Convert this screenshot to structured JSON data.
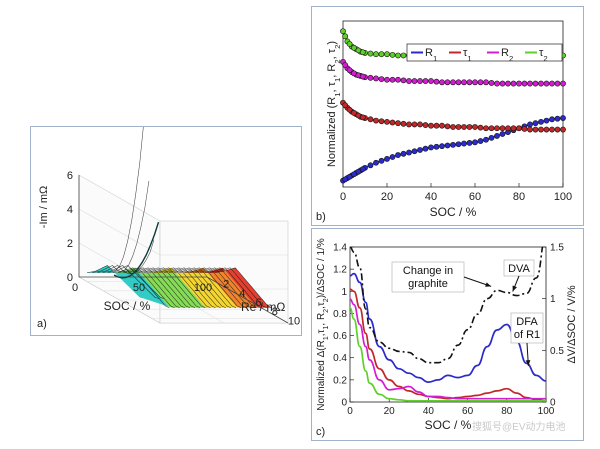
{
  "panel_labels": {
    "a": "a)",
    "b": "b)",
    "c": "c)"
  },
  "watermark": "搜狐号@EV动力电池",
  "chart_data": [
    {
      "type": "surface3d",
      "panel": "a",
      "axes": {
        "z": {
          "label": "-Im / mΩ",
          "ticks": [
            "0",
            "2",
            "4",
            "6"
          ],
          "range": [
            0,
            6
          ]
        },
        "x": {
          "label": "SOC / %",
          "ticks": [
            "0",
            "50",
            "100"
          ],
          "range": [
            0,
            100
          ]
        },
        "y": {
          "label": "Re / mΩ",
          "ticks": [
            "2",
            "4",
            "6",
            "8",
            "10"
          ],
          "range": [
            1,
            11
          ]
        }
      },
      "colormap": [
        "#1fc8c0",
        "#7cd84a",
        "#f4d21f",
        "#f07a1a",
        "#e0301e"
      ]
    },
    {
      "type": "scatter-line",
      "panel": "b",
      "xlabel": "SOC / %",
      "ylabel": "Normalized (R1, τ1, R2, τ2)",
      "ylabel_parts": [
        "Normalized (R",
        "1",
        ", τ",
        "1",
        ", R",
        "2",
        ", τ",
        "2",
        ")"
      ],
      "xlim": [
        0,
        100
      ],
      "ylim": [
        0,
        1.3
      ],
      "xticks": [
        "0",
        "20",
        "40",
        "60",
        "80",
        "100"
      ],
      "x": [
        0,
        2,
        4,
        6,
        8,
        10,
        15,
        20,
        25,
        30,
        35,
        40,
        45,
        50,
        55,
        60,
        65,
        70,
        75,
        80,
        85,
        90,
        95,
        100
      ],
      "legend_position": "top-right",
      "series": [
        {
          "name": "R1",
          "name_base": "R",
          "name_sub": "1",
          "color": "#2b2bcc",
          "values": [
            0.05,
            0.07,
            0.09,
            0.11,
            0.13,
            0.15,
            0.19,
            0.22,
            0.25,
            0.27,
            0.29,
            0.31,
            0.32,
            0.33,
            0.34,
            0.35,
            0.37,
            0.4,
            0.43,
            0.46,
            0.49,
            0.51,
            0.53,
            0.54
          ]
        },
        {
          "name": "τ1",
          "name_base": "τ",
          "name_sub": "1",
          "color": "#c0282a",
          "values": [
            0.66,
            0.62,
            0.59,
            0.57,
            0.55,
            0.54,
            0.52,
            0.51,
            0.5,
            0.49,
            0.49,
            0.48,
            0.48,
            0.47,
            0.47,
            0.47,
            0.46,
            0.46,
            0.46,
            0.46,
            0.45,
            0.45,
            0.45,
            0.45
          ]
        },
        {
          "name": "R2",
          "name_base": "R",
          "name_sub": "2",
          "color": "#d21ed2",
          "values": [
            0.98,
            0.93,
            0.9,
            0.88,
            0.87,
            0.86,
            0.85,
            0.84,
            0.84,
            0.83,
            0.83,
            0.83,
            0.82,
            0.82,
            0.82,
            0.82,
            0.82,
            0.81,
            0.81,
            0.81,
            0.81,
            0.81,
            0.81,
            0.81
          ]
        },
        {
          "name": "τ2",
          "name_base": "τ",
          "name_sub": "2",
          "color": "#5fd02a",
          "values": [
            1.22,
            1.14,
            1.1,
            1.08,
            1.06,
            1.05,
            1.04,
            1.04,
            1.03,
            1.03,
            1.03,
            1.03,
            1.03,
            1.03,
            1.03,
            1.03,
            1.03,
            1.03,
            1.03,
            1.03,
            1.03,
            1.03,
            1.03,
            1.03
          ]
        }
      ]
    },
    {
      "type": "line",
      "panel": "c",
      "xlabel": "SOC / %",
      "ylabel_left": "Normalized Δ(R1, τ1, R2, τ2)/ΔSOC / 1/%",
      "ylabel_left_parts": [
        "Normalized Δ(R",
        "1",
        ",τ",
        "1",
        ", R",
        "2",
        ",τ",
        "2",
        ")/ΔSOC / 1/%"
      ],
      "ylabel_right": "ΔV/ΔSOC / V/%",
      "xlim": [
        0,
        100
      ],
      "ylim_left": [
        0,
        1.4
      ],
      "ylim_right": [
        0,
        1.5
      ],
      "xticks": [
        "0",
        "20",
        "40",
        "60",
        "80",
        "100"
      ],
      "yticks_left": [
        "0",
        "0.2",
        "0.4",
        "0.6",
        "0.8",
        "1",
        "1.2",
        "1.4"
      ],
      "yticks_right": [
        "0",
        "0.5",
        "1",
        "1.5"
      ],
      "x": [
        0,
        2,
        5,
        8,
        10,
        15,
        20,
        25,
        30,
        35,
        40,
        45,
        50,
        55,
        60,
        65,
        70,
        75,
        80,
        85,
        90,
        95,
        100
      ],
      "series": [
        {
          "name": "R1",
          "axis": "left",
          "color": "#2b2bcc",
          "values": [
            1.14,
            1.16,
            1.08,
            0.9,
            0.75,
            0.5,
            0.38,
            0.3,
            0.26,
            0.22,
            0.18,
            0.2,
            0.24,
            0.22,
            0.24,
            0.33,
            0.5,
            0.65,
            0.7,
            0.55,
            0.35,
            0.24,
            0.19
          ]
        },
        {
          "name": "τ1",
          "axis": "left",
          "color": "#c0282a",
          "values": [
            1.02,
            1.0,
            0.85,
            0.62,
            0.48,
            0.3,
            0.2,
            0.14,
            0.1,
            0.07,
            0.05,
            0.04,
            0.03,
            0.04,
            0.05,
            0.06,
            0.08,
            0.1,
            0.12,
            0.08,
            0.04,
            0.02,
            0.01
          ]
        },
        {
          "name": "R2",
          "axis": "left",
          "color": "#d21ed2",
          "values": [
            0.93,
            0.88,
            0.7,
            0.5,
            0.38,
            0.2,
            0.11,
            0.12,
            0.14,
            0.09,
            0.05,
            0.05,
            0.04,
            0.03,
            0.03,
            0.03,
            0.03,
            0.03,
            0.03,
            0.03,
            0.03,
            0.03,
            0.03
          ]
        },
        {
          "name": "τ2",
          "axis": "left",
          "color": "#5fd02a",
          "values": [
            0.85,
            0.75,
            0.5,
            0.28,
            0.17,
            0.07,
            0.03,
            0.02,
            0.01,
            0.01,
            0.01,
            0.01,
            0.01,
            0.01,
            0.01,
            0.01,
            0.01,
            0.01,
            0.01,
            0.01,
            0.01,
            0.01,
            0.01
          ]
        },
        {
          "name": "DVA",
          "axis": "right",
          "color": "#111111",
          "dash": "dash-dot",
          "values": [
            1.5,
            1.45,
            1.3,
            0.9,
            0.72,
            0.58,
            0.52,
            0.49,
            0.48,
            0.42,
            0.38,
            0.38,
            0.42,
            0.55,
            0.7,
            0.85,
            1.0,
            1.08,
            1.06,
            1.03,
            1.05,
            1.2,
            1.6
          ]
        }
      ],
      "annotations": [
        {
          "text": "Change in graphite",
          "lines": [
            "Change in",
            "graphite"
          ],
          "target": {
            "x": 72,
            "y_right": 1.09
          }
        },
        {
          "text": "DVA",
          "lines": [
            "DVA"
          ],
          "target": {
            "x": 83,
            "y_right": 1.04
          }
        },
        {
          "text": "DFA of R1",
          "lines": [
            "DFA",
            "of R1"
          ],
          "target": {
            "x": 91,
            "y_left": 0.3
          }
        }
      ]
    }
  ]
}
